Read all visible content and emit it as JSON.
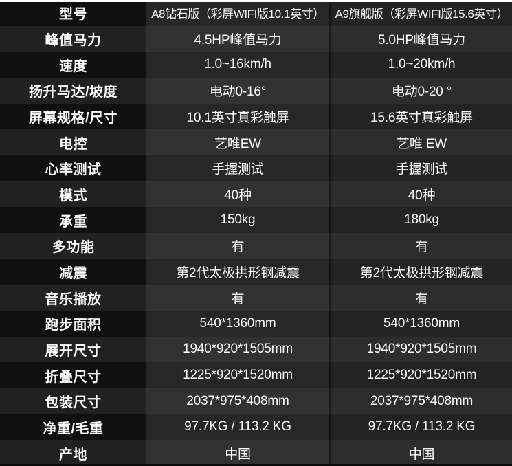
{
  "colors": {
    "label_col_dark": "#101010",
    "label_col_light": "#212121",
    "value_col_dark": "#272727",
    "value_col_light": "#323232",
    "value_col2_dark": "#232323",
    "value_col2_light": "#2d2d2d",
    "text": "#fbfbfb"
  },
  "table": {
    "rows": [
      {
        "label": "型号",
        "a8": "A8钻石版（彩屏WIFI版10.1英寸）",
        "a9": "A9旗舰版（彩屏WIFI版15.6英寸）"
      },
      {
        "label": "峰值马力",
        "a8": "4.5HP峰值马力",
        "a9": "5.0HP峰值马力"
      },
      {
        "label": "速度",
        "a8": "1.0~16km/h",
        "a9": "1.0~20km/h"
      },
      {
        "label": "扬升马达/坡度",
        "a8": "电动0-16°",
        "a9": "电动0-20 °"
      },
      {
        "label": "屏幕规格/尺寸",
        "a8": "10.1英寸真彩触屏",
        "a9": "15.6英寸真彩触屏"
      },
      {
        "label": "电控",
        "a8": "艺唯EW",
        "a9": "艺唯 EW"
      },
      {
        "label": "心率测试",
        "a8": "手握测试",
        "a9": "手握测试"
      },
      {
        "label": "模式",
        "a8": "40种",
        "a9": "40种"
      },
      {
        "label": "承重",
        "a8": "150kg",
        "a9": "180kg"
      },
      {
        "label": "多功能",
        "a8": "有",
        "a9": "有"
      },
      {
        "label": "减震",
        "a8": "第2代太极拱形钢减震",
        "a9": "第2代太极拱形钢减震"
      },
      {
        "label": "音乐播放",
        "a8": "有",
        "a9": "有"
      },
      {
        "label": "跑步面积",
        "a8": "540*1360mm",
        "a9": "540*1360mm"
      },
      {
        "label": "展开尺寸",
        "a8": "1940*920*1505mm",
        "a9": "1940*920*1505mm"
      },
      {
        "label": "折叠尺寸",
        "a8": "1225*920*1520mm",
        "a9": "1225*920*1520mm"
      },
      {
        "label": "包装尺寸",
        "a8": "2037*975*408mm",
        "a9": "2037*975*408mm"
      },
      {
        "label": "净重/毛重",
        "a8": "97.7KG / 113.2 KG",
        "a9": "97.7KG / 113.2 KG"
      },
      {
        "label": "产地",
        "a8": "中国",
        "a9": "中国"
      }
    ]
  }
}
